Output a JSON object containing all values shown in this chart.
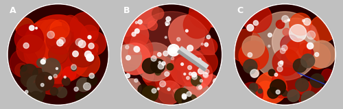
{
  "figure_width": 5.0,
  "figure_height": 1.59,
  "dpi": 100,
  "bg_color": "#c0c0c0",
  "num_panels": 3,
  "labels": [
    "A",
    "B",
    "C"
  ],
  "label_color": "#ffffff",
  "label_fontsize": 9,
  "label_fontweight": "bold",
  "panel_A": {
    "bg": "#300000",
    "colors": [
      "#cc1100",
      "#aa0000",
      "#dd2200",
      "#bb1100",
      "#ff3300",
      "#ee1100",
      "#991100"
    ],
    "dark_colors": [
      "#443322",
      "#332211",
      "#554433",
      "#221100",
      "#3a2010"
    ],
    "highlight": "#ffffff"
  },
  "panel_B": {
    "bg": "#280000",
    "colors": [
      "#cc2211",
      "#dd3322",
      "#bb1100",
      "#ee4433",
      "#ff5544",
      "#cc8877",
      "#dd6655",
      "#aa3322"
    ],
    "dark_colors": [
      "#332200",
      "#443311",
      "#221100"
    ],
    "instrument_color": "#d8d8d8",
    "instrument_dark": "#a0a0a0",
    "highlight": "#ffffff"
  },
  "panel_C": {
    "bg": "#280000",
    "colors": [
      "#cc1100",
      "#aa0000",
      "#dd2200",
      "#bb1100",
      "#ee3300",
      "#ff4411",
      "#dd5544",
      "#cc8866"
    ],
    "highlight": "#ffffff",
    "suture_color": "#2233bb"
  }
}
